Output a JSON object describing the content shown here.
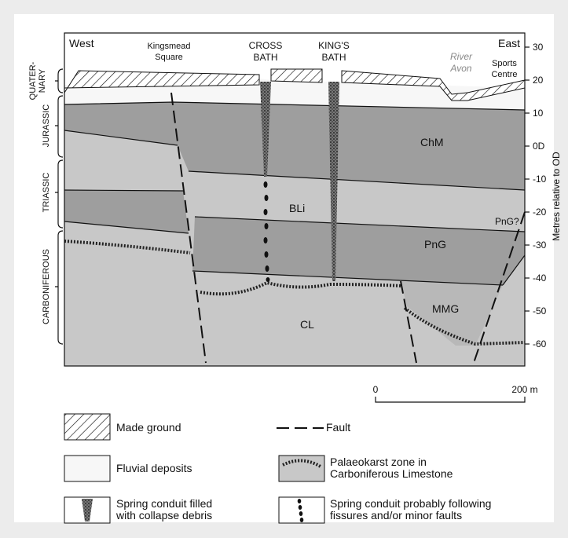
{
  "section": {
    "top_labels": {
      "west": "West",
      "kingsmead": [
        "Kingsmead",
        "Square"
      ],
      "cross_bath": [
        "CROSS",
        "BATH"
      ],
      "kings_bath": [
        "KING'S",
        "BATH"
      ],
      "east": "East",
      "river": [
        "River",
        "Avon"
      ],
      "sports": [
        "Sports",
        "Centre"
      ]
    },
    "units": {
      "chm": "ChM",
      "bli": "BLi",
      "png": "PnG",
      "png_q": "PnG?",
      "mmg": "MMG",
      "cl": "CL"
    },
    "periods": {
      "quaternary": [
        "QUATER-",
        "NARY"
      ],
      "jurassic": "JURASSIC",
      "triassic": "TRIASSIC",
      "carboniferous": "CARBONIFEROUS"
    },
    "axis": {
      "title": "Metres relative to OD",
      "ticks": [
        "30",
        "20",
        "10",
        "0D",
        "-10",
        "-20",
        "-30",
        "-40",
        "-50",
        "-60"
      ]
    },
    "scale": {
      "start": "0",
      "end": "200 m"
    }
  },
  "legend": {
    "made_ground": "Made ground",
    "fault": "Fault",
    "fluvial": "Fluvial deposits",
    "palaeokarst": [
      "Palaeokarst zone in",
      "Carboniferous Limestone"
    ],
    "conduit_debris": [
      "Spring conduit filled",
      "with collapse debris"
    ],
    "conduit_fissure": [
      "Spring conduit probably following",
      "fissures and/or minor faults"
    ]
  }
}
